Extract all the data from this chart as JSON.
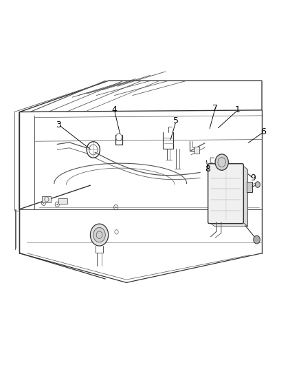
{
  "bg_color": "#ffffff",
  "lc": "#555555",
  "lc_dark": "#333333",
  "lc_light": "#888888",
  "label_color": "#000000",
  "fig_width": 4.38,
  "fig_height": 5.33,
  "dpi": 100,
  "callouts": {
    "1": [
      0.79,
      0.7,
      0.72,
      0.648
    ],
    "3": [
      0.195,
      0.66,
      0.305,
      0.59
    ],
    "4": [
      0.38,
      0.7,
      0.4,
      0.63
    ],
    "5": [
      0.585,
      0.67,
      0.565,
      0.615
    ],
    "6": [
      0.875,
      0.64,
      0.82,
      0.608
    ],
    "7": [
      0.715,
      0.705,
      0.695,
      0.645
    ],
    "8": [
      0.69,
      0.54,
      0.685,
      0.568
    ],
    "9": [
      0.84,
      0.515,
      0.8,
      0.543
    ]
  }
}
